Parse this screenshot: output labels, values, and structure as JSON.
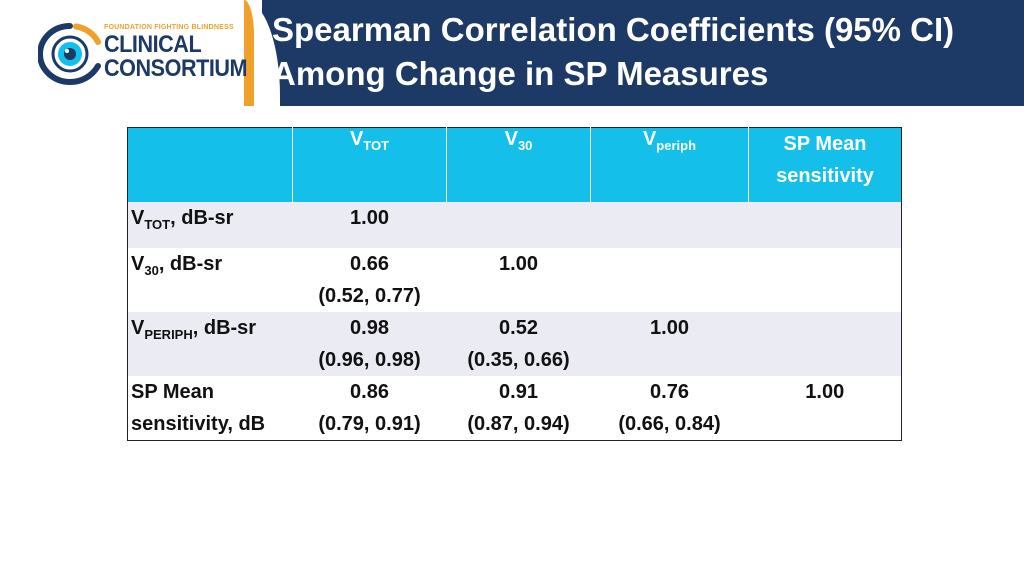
{
  "logo": {
    "small_text": "FOUNDATION FIGHTING BLINDNESS",
    "line1": "CLINICAL",
    "line2": "CONSORTIUM"
  },
  "title": {
    "line1": "Spearman Correlation Coefficients (95% CI)",
    "line2": "Among Change in SP Measures"
  },
  "colors": {
    "header_bg": "#1d3a66",
    "accent_orange": "#f0a12b",
    "table_header_bg": "#14c0ea",
    "row_alt_bg": "#eaebf3"
  },
  "table": {
    "headers": [
      {
        "base": "V",
        "sub": "TOT"
      },
      {
        "base": "V",
        "sub": "30"
      },
      {
        "base": "V",
        "sub": "periph"
      },
      {
        "line1": "SP Mean",
        "line2": "sensitivity"
      }
    ],
    "rows": [
      {
        "label_base": "V",
        "label_sub": "TOT",
        "label_rest": ", dB-sr",
        "cells": [
          {
            "value": "1.00",
            "ci": ""
          },
          {
            "value": "",
            "ci": ""
          },
          {
            "value": "",
            "ci": ""
          },
          {
            "value": "",
            "ci": ""
          }
        ]
      },
      {
        "label_base": "V",
        "label_sub": "30",
        "label_rest": ", dB-sr",
        "cells": [
          {
            "value": "0.66",
            "ci": "(0.52, 0.77)"
          },
          {
            "value": "1.00",
            "ci": ""
          },
          {
            "value": "",
            "ci": ""
          },
          {
            "value": "",
            "ci": ""
          }
        ]
      },
      {
        "label_base": "V",
        "label_sub": "PERIPH",
        "label_rest": ", dB-sr",
        "cells": [
          {
            "value": "0.98",
            "ci": "(0.96, 0.98)"
          },
          {
            "value": "0.52",
            "ci": "(0.35, 0.66)"
          },
          {
            "value": "1.00",
            "ci": ""
          },
          {
            "value": "",
            "ci": ""
          }
        ]
      },
      {
        "label_line1": "SP Mean",
        "label_line2": "sensitivity, dB",
        "cells": [
          {
            "value": "0.86",
            "ci": "(0.79, 0.91)"
          },
          {
            "value": "0.91",
            "ci": "(0.87, 0.94)"
          },
          {
            "value": "0.76",
            "ci": "(0.66, 0.84)"
          },
          {
            "value": "1.00",
            "ci": ""
          }
        ]
      }
    ]
  }
}
